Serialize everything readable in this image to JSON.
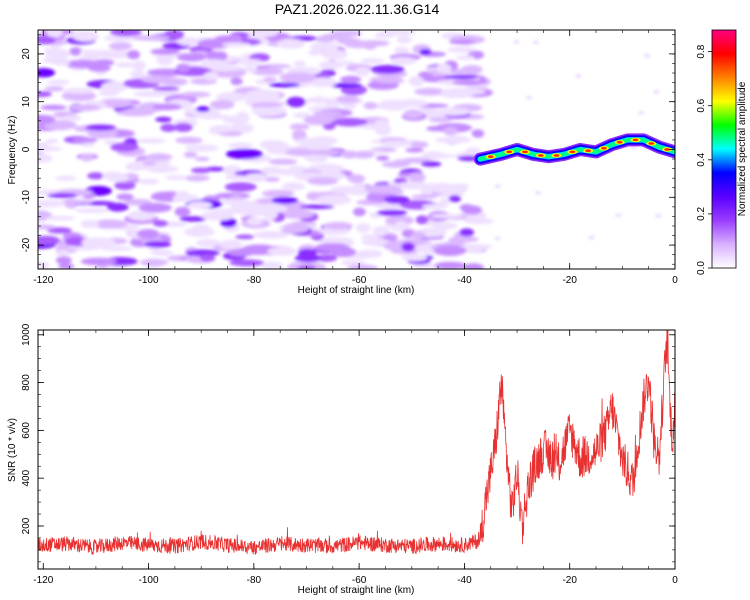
{
  "figure": {
    "title": "PAZ1.2026.022.11.36.G14"
  },
  "chart_data": [
    {
      "type": "heatmap",
      "name": "spectrogram",
      "xlabel": "Height of straight line (km)",
      "ylabel": "Frequency (Hz)",
      "xlim": [
        -121,
        0
      ],
      "ylim": [
        -25,
        25
      ],
      "x_ticks": [
        -120,
        -100,
        -80,
        -60,
        -40,
        -20,
        0
      ],
      "x_tick_labels": [
        "-120",
        "-100",
        "-80",
        "-60",
        "-40",
        "-20",
        "0"
      ],
      "y_ticks": [
        -20,
        -10,
        0,
        10,
        20
      ],
      "y_tick_labels": [
        "-20",
        "-10",
        "0",
        "10",
        "20"
      ],
      "noise_region_x": [
        -121,
        -37
      ],
      "signal_track": {
        "x": [
          -37,
          -33,
          -30,
          -27,
          -24,
          -21,
          -18,
          -15,
          -12,
          -9,
          -6,
          -3,
          0
        ],
        "frequency": [
          -2,
          -1,
          0,
          -1,
          -1.5,
          -1,
          0,
          -0.5,
          1,
          2,
          2,
          0.5,
          -0.5
        ]
      },
      "colorbar": {
        "label": "Normalized spectral amplitude",
        "range": [
          0.0,
          0.88
        ],
        "ticks": [
          0.0,
          0.2,
          0.4,
          0.6,
          0.8
        ],
        "tick_labels": [
          "0.0",
          "0.2",
          "0.4",
          "0.6",
          "0.8"
        ],
        "colors": [
          "#ffffff",
          "#d8b0ff",
          "#9a3cff",
          "#5a00ff",
          "#0000ff",
          "#00ffff",
          "#00ff00",
          "#ffff00",
          "#ff8000",
          "#ff0000",
          "#ff0080"
        ]
      }
    },
    {
      "type": "line",
      "name": "snr",
      "xlabel": "Height of straight line (km)",
      "ylabel": "SNR (10 * v/v)",
      "xlim": [
        -121,
        0
      ],
      "ylim": [
        20,
        1020
      ],
      "x_ticks": [
        -120,
        -100,
        -80,
        -60,
        -40,
        -20,
        0
      ],
      "x_tick_labels": [
        "-120",
        "-100",
        "-80",
        "-60",
        "-40",
        "-20",
        "0"
      ],
      "y_ticks": [
        200,
        400,
        600,
        800,
        1000
      ],
      "y_tick_labels": [
        "200",
        "400",
        "600",
        "800",
        "1000"
      ],
      "line_color": "#e83030",
      "series": [
        {
          "name": "SNR",
          "x": [
            -121,
            -115,
            -110,
            -105,
            -100,
            -95,
            -90,
            -85,
            -80,
            -75,
            -70,
            -65,
            -60,
            -55,
            -50,
            -45,
            -40,
            -37,
            -36,
            -35,
            -34,
            -33,
            -32,
            -31,
            -30,
            -29,
            -28,
            -27,
            -25,
            -22,
            -20,
            -18,
            -15,
            -13,
            -12,
            -10,
            -8,
            -6,
            -5,
            -4,
            -3,
            -2,
            -1.5,
            -1,
            -0.5,
            0
          ],
          "values": [
            120,
            125,
            110,
            130,
            120,
            115,
            135,
            120,
            110,
            125,
            120,
            115,
            130,
            120,
            115,
            125,
            120,
            140,
            300,
            420,
            560,
            800,
            500,
            260,
            420,
            200,
            350,
            430,
            520,
            460,
            600,
            480,
            510,
            600,
            700,
            480,
            380,
            720,
            820,
            560,
            480,
            840,
            1000,
            720,
            560,
            700
          ]
        }
      ]
    }
  ]
}
